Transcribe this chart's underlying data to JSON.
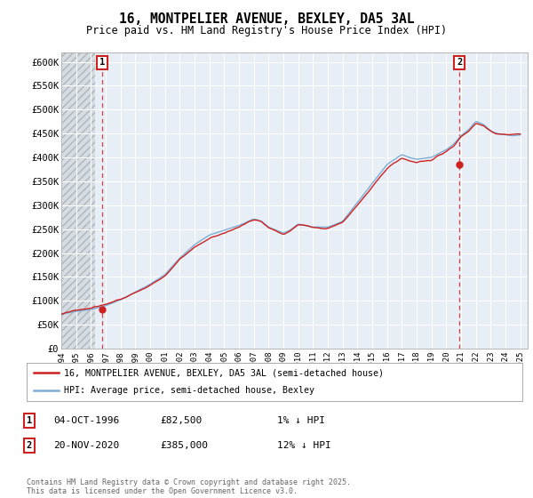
{
  "title": "16, MONTPELIER AVENUE, BEXLEY, DA5 3AL",
  "subtitle": "Price paid vs. HM Land Registry's House Price Index (HPI)",
  "ylabel_ticks": [
    "£0",
    "£50K",
    "£100K",
    "£150K",
    "£200K",
    "£250K",
    "£300K",
    "£350K",
    "£400K",
    "£450K",
    "£500K",
    "£550K",
    "£600K"
  ],
  "ylim": [
    0,
    620000
  ],
  "ytick_vals": [
    0,
    50000,
    100000,
    150000,
    200000,
    250000,
    300000,
    350000,
    400000,
    450000,
    500000,
    550000,
    600000
  ],
  "xmin_year": 1994,
  "xmax_year": 2025.5,
  "xtick_years": [
    1994,
    1995,
    1996,
    1997,
    1998,
    1999,
    2000,
    2001,
    2002,
    2003,
    2004,
    2005,
    2006,
    2007,
    2008,
    2009,
    2010,
    2011,
    2012,
    2013,
    2014,
    2015,
    2016,
    2017,
    2018,
    2019,
    2020,
    2021,
    2022,
    2023,
    2024,
    2025
  ],
  "hpi_color": "#7dadd4",
  "price_color": "#cc2222",
  "marker1_date": 1996.76,
  "marker1_price": 82500,
  "marker1_label": "1",
  "marker2_date": 2020.89,
  "marker2_price": 385000,
  "marker2_label": "2",
  "legend_line1": "16, MONTPELIER AVENUE, BEXLEY, DA5 3AL (semi-detached house)",
  "legend_line2": "HPI: Average price, semi-detached house, Bexley",
  "ann1_num": "1",
  "ann1_date": "04-OCT-1996",
  "ann1_price": "£82,500",
  "ann1_hpi": "1% ↓ HPI",
  "ann2_num": "2",
  "ann2_date": "20-NOV-2020",
  "ann2_price": "£385,000",
  "ann2_hpi": "12% ↓ HPI",
  "footnote": "Contains HM Land Registry data © Crown copyright and database right 2025.\nThis data is licensed under the Open Government Licence v3.0.",
  "background_color": "#ffffff",
  "plot_bg_color": "#e8eef5",
  "grid_color": "#ffffff",
  "hatch_color": "#cccccc"
}
